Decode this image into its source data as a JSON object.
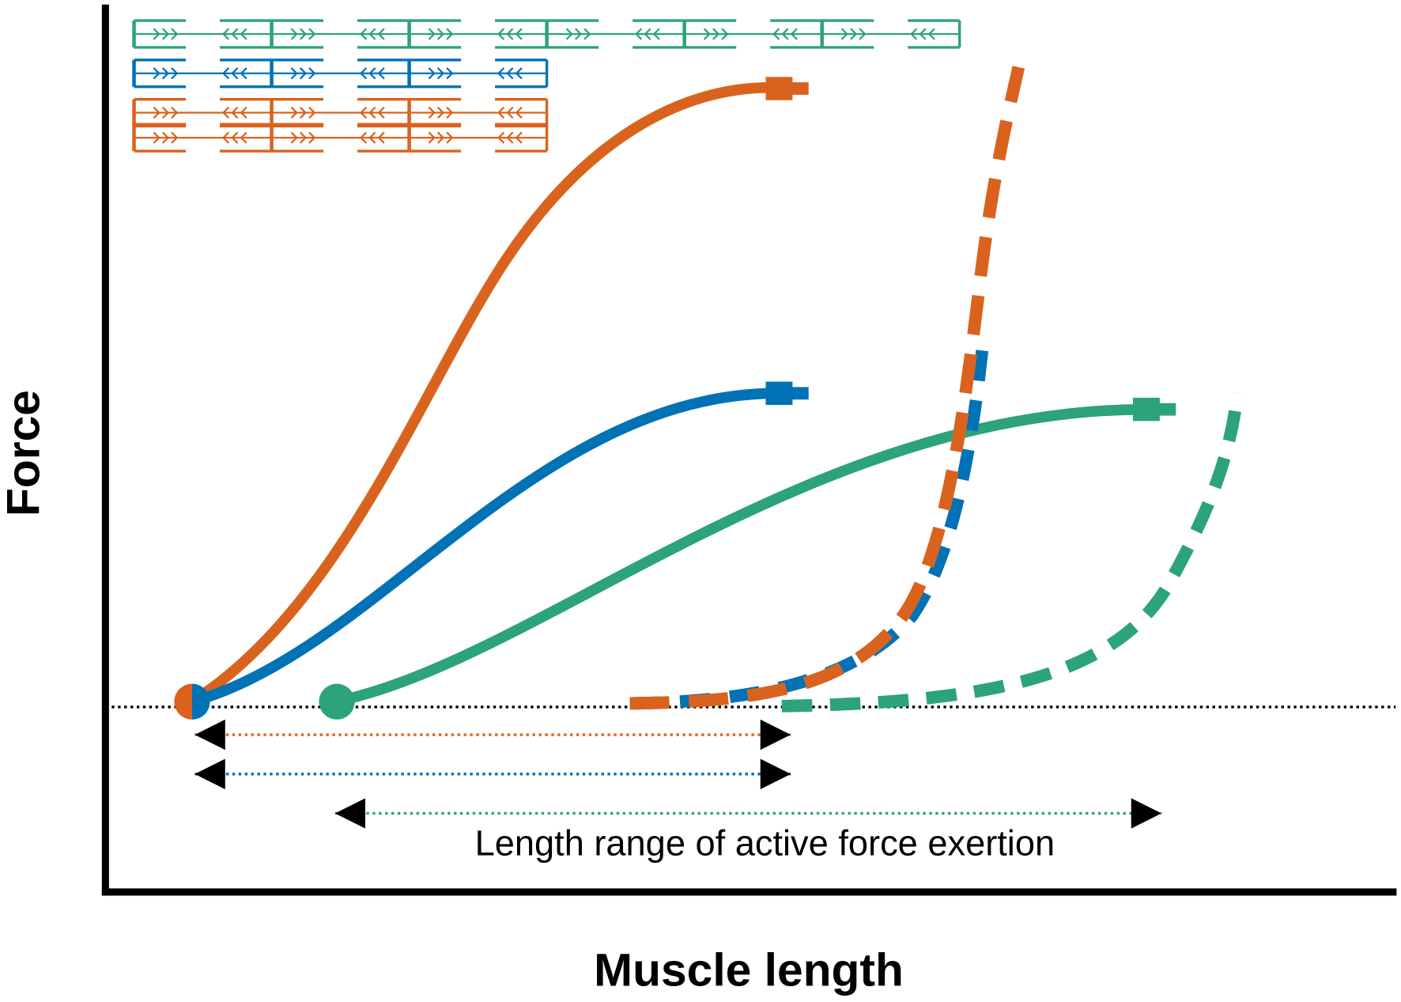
{
  "axes": {
    "y_label": "Force",
    "x_label": "Muscle length"
  },
  "annotation": "Length range of active force exertion"
}
